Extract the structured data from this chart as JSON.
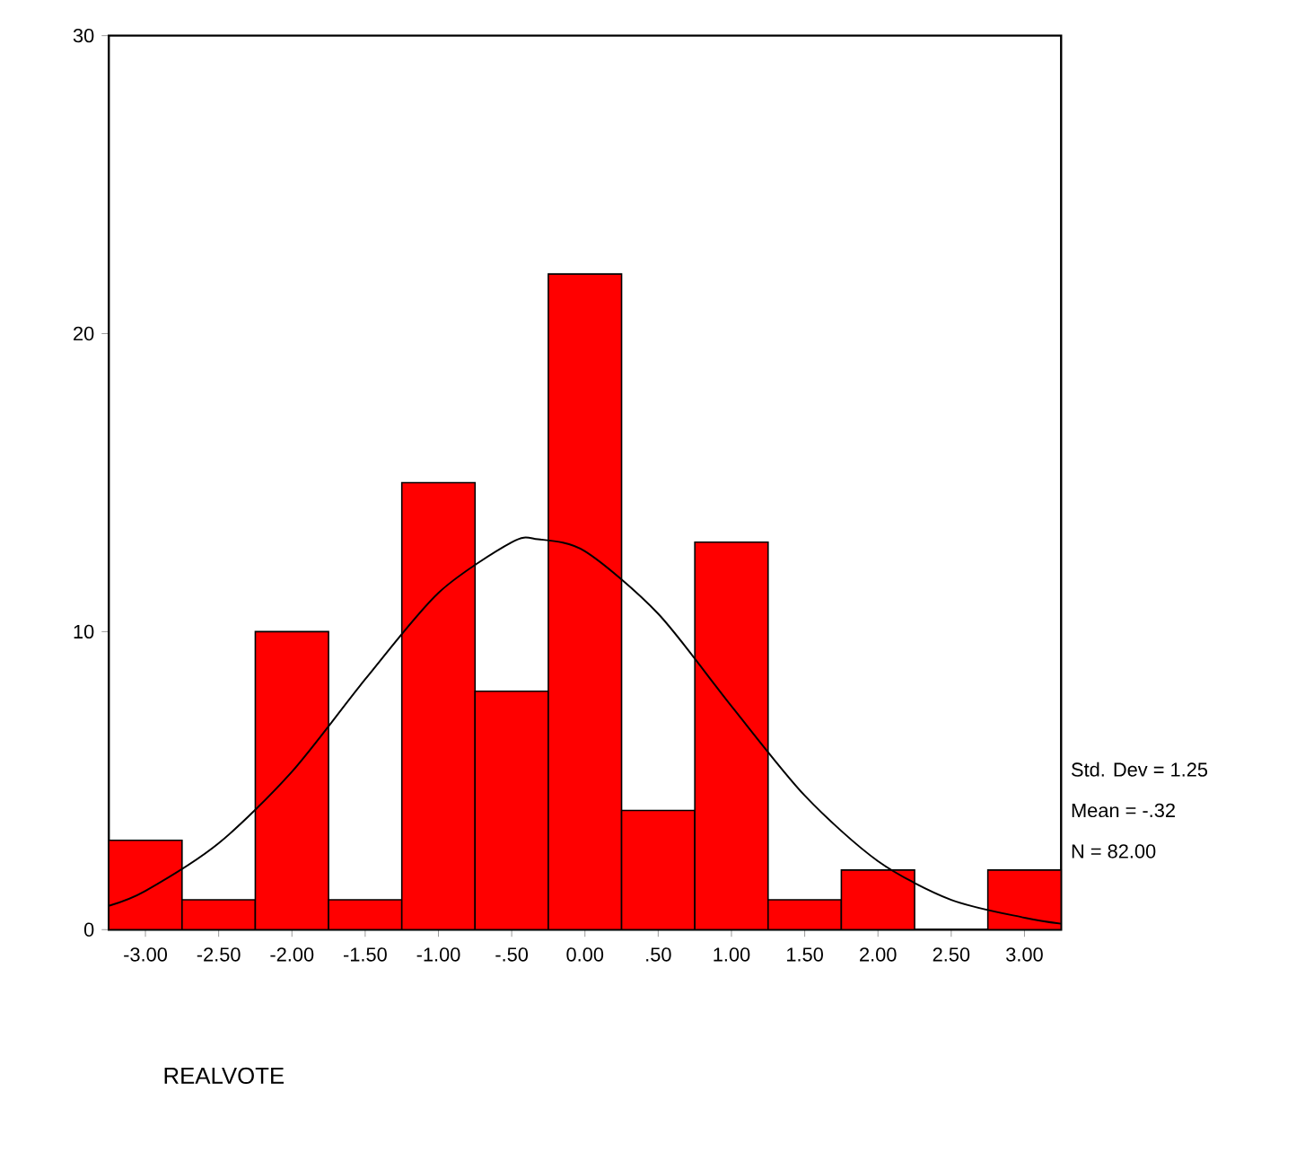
{
  "chart_data": {
    "type": "histogram",
    "xlabel": "REALVOTE",
    "bins": [
      -3.25,
      -2.75,
      -2.25,
      -1.75,
      -1.25,
      -0.75,
      -0.25,
      0.25,
      0.75,
      1.25,
      1.75,
      2.25,
      2.75,
      3.25
    ],
    "values": [
      3,
      1,
      10,
      1,
      15,
      8,
      22,
      4,
      13,
      1,
      2,
      0,
      2
    ],
    "color": "#ff0000",
    "series": [
      {
        "type": "line",
        "color": "#000000",
        "x": [
          -3.25,
          -3.0,
          -2.5,
          -2.0,
          -1.5,
          -1.0,
          -0.5,
          -0.32,
          0.0,
          0.5,
          1.0,
          1.5,
          2.0,
          2.5,
          3.0,
          3.25
        ],
        "values": [
          0.8,
          1.3,
          2.9,
          5.3,
          8.4,
          11.3,
          13.0,
          13.1,
          12.7,
          10.6,
          7.5,
          4.5,
          2.3,
          1.0,
          0.4,
          0.2
        ]
      }
    ],
    "xlim": [
      -3.25,
      3.25
    ],
    "ylim": [
      0,
      30
    ],
    "xticks": [
      {
        "value": -3,
        "label": "-3.00"
      },
      {
        "value": -2.5,
        "label": "-2.50"
      },
      {
        "value": -2,
        "label": "-2.00"
      },
      {
        "value": -1.5,
        "label": "-1.50"
      },
      {
        "value": -1,
        "label": "-1.00"
      },
      {
        "value": -0.5,
        "label": "-.50"
      },
      {
        "value": 0,
        "label": "0.00"
      },
      {
        "value": 0.5,
        "label": ".50"
      },
      {
        "value": 1,
        "label": "1.00"
      },
      {
        "value": 1.5,
        "label": "1.50"
      },
      {
        "value": 2,
        "label": "2.00"
      },
      {
        "value": 2.5,
        "label": "2.50"
      },
      {
        "value": 3,
        "label": "3.00"
      }
    ],
    "yticks": [
      0,
      10,
      20,
      30
    ],
    "annotations": [
      "Std. Dev = 1.25",
      "Mean = -.32",
      "N = 82.00"
    ]
  }
}
